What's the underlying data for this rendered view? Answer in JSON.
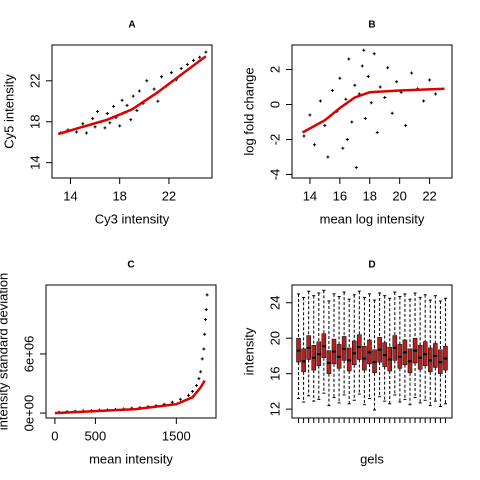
{
  "chart_data": [
    {
      "type": "scatter",
      "title": "A",
      "x_label": "Cy3 intensity",
      "y_label": "Cy5 intensity",
      "xlim": [
        12.5,
        25.5
      ],
      "ylim": [
        12.5,
        25.5
      ],
      "xticks": [
        14,
        18,
        22
      ],
      "yticks": [
        14,
        18,
        22
      ],
      "color": "#000000",
      "x": [
        13.2,
        13.8,
        14.5,
        15,
        15.3,
        15.8,
        16,
        16.2,
        16.5,
        16.8,
        17,
        17.2,
        17.5,
        17.7,
        18,
        18.2,
        18.4,
        18.6,
        18.9,
        19.1,
        19.4,
        19.6,
        19.9,
        20.2,
        20.5,
        20.8,
        21.1,
        21.4,
        21.8,
        22.2,
        22.6,
        23,
        23.5,
        24,
        24.5,
        25
      ],
      "values": [
        16.9,
        17.2,
        17.0,
        17.8,
        16.9,
        18.3,
        17.5,
        19.0,
        18.0,
        17.4,
        18.8,
        17.9,
        19.5,
        18.4,
        17.6,
        20.1,
        18.9,
        19.6,
        18.2,
        20.5,
        19.1,
        21.0,
        19.8,
        22.0,
        20.4,
        21.2,
        20.0,
        22.4,
        21.5,
        22.8,
        22.1,
        23.2,
        23.6,
        24.0,
        24.3,
        24.8
      ],
      "fit": {
        "color": "#dd0000",
        "x": [
          13,
          15,
          17,
          19,
          21,
          23,
          25
        ],
        "values": [
          16.8,
          17.5,
          18.2,
          19.2,
          20.8,
          22.6,
          24.4
        ]
      }
    },
    {
      "type": "scatter",
      "title": "B",
      "x_label": "mean log intensity",
      "y_label": "log fold change",
      "xlim": [
        12.8,
        23.5
      ],
      "ylim": [
        -4.2,
        3.4
      ],
      "xticks": [
        14,
        16,
        18,
        20,
        22
      ],
      "yticks": [
        -4,
        -2,
        0,
        2
      ],
      "color": "#000000",
      "x": [
        13.6,
        14.0,
        14.3,
        14.7,
        15.0,
        15.2,
        15.5,
        15.8,
        16.0,
        16.2,
        16.4,
        16.6,
        16.8,
        17.0,
        17.1,
        17.3,
        17.5,
        17.7,
        17.9,
        18.1,
        18.3,
        18.5,
        18.7,
        19.0,
        19.2,
        19.5,
        19.8,
        20.1,
        20.4,
        20.8,
        21.2,
        21.6,
        22.0,
        22.4,
        16.5,
        17.6
      ],
      "values": [
        -1.8,
        -0.6,
        -2.3,
        0.2,
        -1.2,
        -3.0,
        0.8,
        -0.4,
        1.5,
        -2.5,
        0.3,
        2.6,
        -1.0,
        1.1,
        -3.6,
        0.6,
        2.2,
        -0.8,
        1.6,
        0.1,
        2.9,
        -1.6,
        1.0,
        0.4,
        2.1,
        -0.5,
        1.3,
        0.7,
        -1.2,
        1.8,
        0.9,
        0.2,
        1.4,
        0.6,
        -2.0,
        3.1
      ],
      "fit": {
        "color": "#dd0000",
        "x": [
          13.5,
          15,
          16,
          17,
          18,
          20,
          23
        ],
        "values": [
          -1.6,
          -0.9,
          -0.2,
          0.4,
          0.7,
          0.8,
          0.9
        ]
      }
    },
    {
      "type": "scatter",
      "title": "C",
      "x_label": "mean intensity",
      "y_label": "intensity standard deviation",
      "xlim": [
        -110,
        1990
      ],
      "ylim": [
        -500000,
        13000000
      ],
      "xticks": [
        0,
        500,
        1500
      ],
      "yticks": [
        {
          "value": 0,
          "label": "0e+00"
        },
        {
          "value": 6000000,
          "label": "6e+06"
        }
      ],
      "color": "#000000",
      "x": [
        50,
        150,
        250,
        350,
        450,
        550,
        650,
        750,
        850,
        950,
        1050,
        1150,
        1250,
        1350,
        1450,
        1550,
        1650,
        1700,
        1750,
        1780,
        1800,
        1820,
        1840,
        1850,
        1860,
        1870,
        1880
      ],
      "values": [
        100000,
        150000,
        200000,
        220000,
        250000,
        300000,
        330000,
        380000,
        420000,
        500000,
        550000,
        650000,
        750000,
        900000,
        1100000,
        1400000,
        1800000,
        2200000,
        2800000,
        3500000,
        4200000,
        5500000,
        6500000,
        8000000,
        9500000,
        10500000,
        12000000
      ],
      "fit": {
        "color": "#dd0000",
        "x": [
          0,
          500,
          1000,
          1500,
          1700,
          1800,
          1850
        ],
        "values": [
          0,
          200000,
          400000,
          900000,
          1600000,
          2600000,
          3300000
        ]
      }
    },
    {
      "type": "box",
      "title": "D",
      "x_label": "gels",
      "y_label": "intensity",
      "ylim": [
        11,
        26
      ],
      "yticks": [
        12,
        16,
        20,
        24
      ],
      "color": "#b22222",
      "median": [
        18.6,
        17.4,
        18.9,
        17.8,
        18.2,
        19.1,
        17.2,
        18.5,
        17.9,
        18.8,
        17.5,
        18.3,
        19.0,
        17.7,
        18.4,
        17.3,
        18.7,
        18.1,
        17.6,
        18.9,
        17.9,
        18.4,
        17.4,
        18.6,
        17.8,
        18.2,
        17.5,
        18.0,
        17.3,
        17.7
      ],
      "q1": [
        17.3,
        16.2,
        17.6,
        16.4,
        16.9,
        17.8,
        16.0,
        17.1,
        16.6,
        17.5,
        16.3,
        17.0,
        17.6,
        16.4,
        17.1,
        16.1,
        17.3,
        16.8,
        16.3,
        17.5,
        16.6,
        17.0,
        16.1,
        17.2,
        16.5,
        16.9,
        16.2,
        16.7,
        16.0,
        16.4
      ],
      "q3": [
        20.0,
        18.8,
        20.3,
        19.2,
        19.6,
        20.5,
        18.6,
        19.9,
        19.3,
        20.2,
        18.9,
        19.7,
        20.4,
        19.1,
        19.8,
        18.7,
        20.1,
        19.5,
        19.0,
        20.3,
        19.3,
        19.8,
        18.8,
        20.0,
        19.2,
        19.6,
        18.9,
        19.4,
        18.7,
        19.1
      ],
      "min": [
        13.2,
        12.8,
        13.5,
        12.9,
        13.1,
        13.8,
        12.4,
        13.3,
        12.7,
        13.6,
        12.6,
        13.0,
        13.7,
        12.5,
        13.2,
        11.9,
        13.4,
        12.9,
        12.6,
        13.6,
        12.8,
        13.1,
        12.5,
        13.3,
        12.7,
        13.0,
        12.4,
        12.9,
        12.3,
        12.6
      ],
      "max": [
        25.0,
        24.6,
        25.3,
        24.8,
        25.1,
        25.4,
        24.2,
        25.0,
        24.7,
        25.2,
        24.4,
        24.9,
        25.3,
        24.6,
        25.0,
        24.3,
        25.1,
        24.8,
        24.5,
        25.2,
        24.7,
        25.0,
        24.4,
        25.1,
        24.6,
        24.9,
        24.3,
        24.8,
        24.2,
        24.5
      ]
    }
  ]
}
